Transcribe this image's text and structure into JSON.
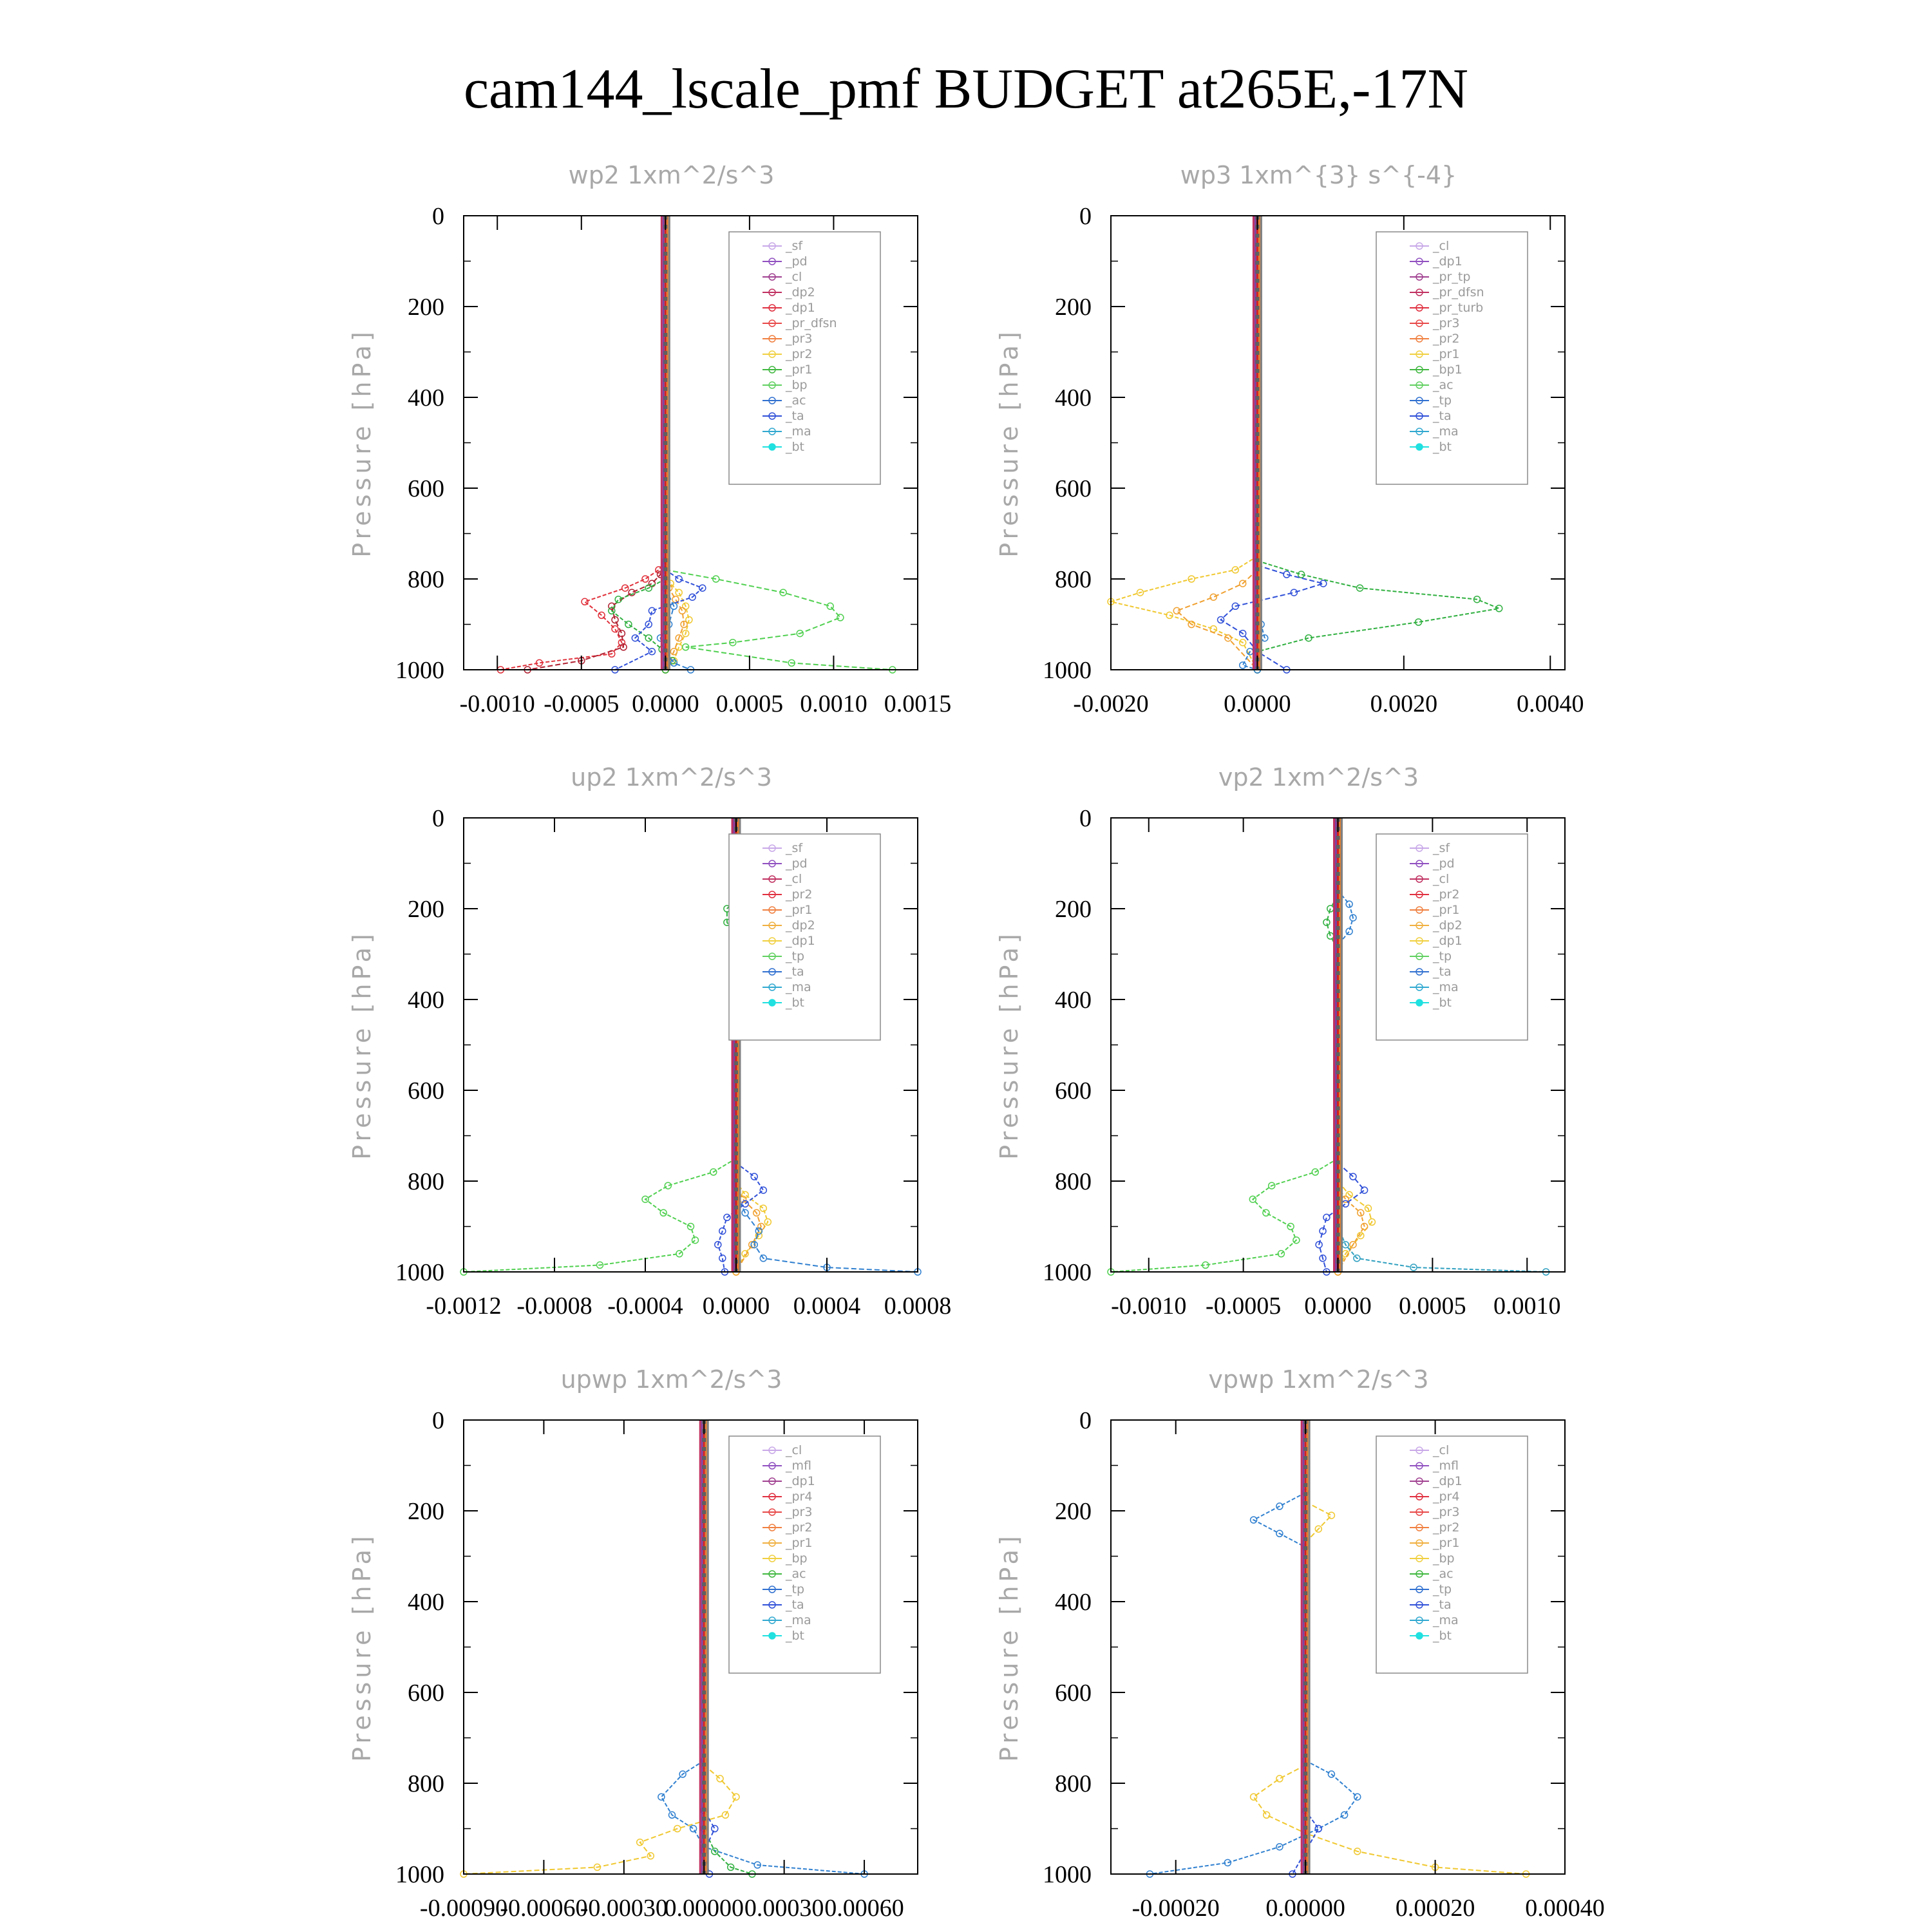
{
  "page": {
    "title": "cam144_lscale_pmf  BUDGET at265E,-17N"
  },
  "chart_data": [
    {
      "type": "line",
      "title": "wp2   1xm^2/s^3",
      "ylabel": "Pressure [hPa]",
      "ylim": [
        1000,
        0
      ],
      "xlim": [
        -0.0012,
        0.0015
      ],
      "xticks": [
        "-0.0010",
        "-0.0005",
        "0.0000",
        "0.0005",
        "0.0010",
        "0.0015"
      ],
      "xtick_values": [
        -0.001,
        -0.0005,
        0.0,
        0.0005,
        0.001,
        0.0015
      ],
      "yticks": [
        "0",
        "200",
        "400",
        "600",
        "800",
        "1000"
      ],
      "legend_position": "top-right",
      "legend": [
        "_sf",
        "_pd",
        "_cl",
        "_dp2",
        "_dp1",
        "_pr_dfsn",
        "_pr3",
        "_pr2",
        "_pr1",
        "_bp",
        "_ac",
        "_ta",
        "_ma",
        "_bt"
      ],
      "series": [
        {
          "name": "_dp1",
          "color": "#e0303a",
          "x": [
            0.0,
            -4e-05,
            -0.00012,
            -0.00024,
            -0.00048,
            -0.00038,
            -0.0003,
            -0.00026,
            -0.00032,
            -0.00075,
            -0.00098
          ],
          "y": [
            760,
            780,
            800,
            820,
            850,
            880,
            910,
            940,
            965,
            985,
            1000
          ]
        },
        {
          "name": "_dp2",
          "color": "#b02030",
          "x": [
            0.0,
            -3e-05,
            -8e-05,
            -0.0002,
            -0.00032,
            -0.0003,
            -0.00026,
            -0.00025,
            -0.0005,
            -0.00082
          ],
          "y": [
            770,
            790,
            810,
            830,
            860,
            890,
            920,
            950,
            980,
            1000
          ]
        },
        {
          "name": "_pr1",
          "color": "#f0c830",
          "x": [
            0.0,
            3e-05,
            8e-05,
            0.00012,
            0.00014,
            0.00012,
            8e-05,
            5e-05,
            0.0
          ],
          "y": [
            790,
            810,
            830,
            860,
            890,
            920,
            950,
            980,
            1000
          ]
        },
        {
          "name": "_pr2",
          "color": "#f0a030",
          "x": [
            0.0,
            2e-05,
            6e-05,
            0.0001,
            0.00011,
            8e-05,
            5e-05,
            0.0
          ],
          "y": [
            800,
            820,
            845,
            870,
            900,
            930,
            960,
            1000
          ]
        },
        {
          "name": "_bp",
          "color": "#30b040",
          "x": [
            0.0,
            -0.0001,
            -0.00028,
            -0.00032,
            -0.00022,
            -0.0001,
            -2e-05,
            4e-05,
            0.0
          ],
          "y": [
            800,
            820,
            845,
            870,
            900,
            930,
            955,
            980,
            1000
          ]
        },
        {
          "name": "_ac",
          "color": "#50d050",
          "x": [
            0.0,
            0.0003,
            0.0007,
            0.00098,
            0.00104,
            0.0008,
            0.0004,
            0.00012,
            0.00075,
            0.00135
          ],
          "y": [
            780,
            800,
            830,
            860,
            885,
            920,
            940,
            950,
            985,
            1000
          ]
        },
        {
          "name": "_ta",
          "color": "#3050d8",
          "x": [
            0.0,
            8e-05,
            0.00022,
            0.00016,
            -8e-05,
            -0.0001,
            -0.00018,
            -8e-05,
            -0.0003
          ],
          "y": [
            780,
            800,
            820,
            840,
            870,
            900,
            930,
            960,
            1000
          ]
        },
        {
          "name": "_ma",
          "color": "#3080d0",
          "x": [
            0.0,
            5e-05,
            2e-05,
            -3e-05,
            0.0,
            5e-05,
            0.00015
          ],
          "y": [
            820,
            860,
            900,
            930,
            960,
            985,
            1000
          ]
        }
      ]
    },
    {
      "type": "line",
      "title": "wp3   1xm^{3} s^{-4}",
      "ylabel": "Pressure [hPa]",
      "ylim": [
        1000,
        0
      ],
      "xlim": [
        -0.002,
        0.0042
      ],
      "xticks": [
        "-0.0020",
        "0.0000",
        "0.0020",
        "0.0040"
      ],
      "xtick_values": [
        -0.002,
        0.0,
        0.002,
        0.004
      ],
      "yticks": [
        "0",
        "200",
        "400",
        "600",
        "800",
        "1000"
      ],
      "legend_position": "top-right",
      "legend": [
        "_cl",
        "_dp1",
        "_pr_tp",
        "_pr_dfsn",
        "_pr_turb",
        "_pr3",
        "_pr2",
        "_pr1",
        "_bp1",
        "_ac",
        "_tp",
        "_ta",
        "_ma",
        "_bt"
      ],
      "series": [
        {
          "name": "_pr1",
          "color": "#f0c830",
          "x": [
            0.0,
            -0.0003,
            -0.0009,
            -0.0016,
            -0.002,
            -0.0012,
            -0.0006,
            -0.0002,
            0.0
          ],
          "y": [
            750,
            780,
            800,
            830,
            850,
            880,
            910,
            940,
            1000
          ]
        },
        {
          "name": "_pr2",
          "color": "#f0a030",
          "x": [
            0.0,
            -0.0002,
            -0.0006,
            -0.0011,
            -0.0009,
            -0.0004,
            0.0
          ],
          "y": [
            780,
            810,
            840,
            870,
            900,
            930,
            1000
          ]
        },
        {
          "name": "_bp1",
          "color": "#30b040",
          "x": [
            0.0,
            0.0006,
            0.0014,
            0.003,
            0.0033,
            0.0022,
            0.0007,
            0.0,
            0.0
          ],
          "y": [
            760,
            790,
            820,
            845,
            865,
            895,
            930,
            960,
            1000
          ]
        },
        {
          "name": "_ta",
          "color": "#3050d8",
          "x": [
            0.0,
            0.0004,
            0.0009,
            0.0005,
            -0.0003,
            -0.0005,
            -0.0002,
            0.0,
            0.0004
          ],
          "y": [
            770,
            790,
            810,
            830,
            860,
            890,
            920,
            960,
            1000
          ]
        },
        {
          "name": "_tp",
          "color": "#3080d0",
          "x": [
            0.0,
            5e-05,
            0.0001,
            -0.0001,
            -0.0002,
            0.0
          ],
          "y": [
            860,
            900,
            930,
            960,
            990,
            1000
          ]
        }
      ]
    },
    {
      "type": "line",
      "title": "up2   1xm^2/s^3",
      "ylabel": "Pressure [hPa]",
      "ylim": [
        1000,
        0
      ],
      "xlim": [
        -0.0012,
        0.0008
      ],
      "xticks": [
        "-0.0012",
        "-0.0008",
        "-0.0004",
        "0.0000",
        "0.0004",
        "0.0008"
      ],
      "xtick_values": [
        -0.0012,
        -0.0008,
        -0.0004,
        0.0,
        0.0004,
        0.0008
      ],
      "yticks": [
        "0",
        "200",
        "400",
        "600",
        "800",
        "1000"
      ],
      "legend_position": "top-right",
      "legend": [
        "_sf",
        "_pd",
        "_cl",
        "_pr2",
        "_pr1",
        "_dp2",
        "_dp1",
        "_tp",
        "_ta",
        "_ma",
        "_bt"
      ],
      "series": [
        {
          "name": "_dp1",
          "color": "#50d050",
          "x": [
            0.0,
            -0.0001,
            -0.0003,
            -0.0004,
            -0.00032,
            -0.0002,
            -0.00018,
            -0.00025,
            -0.0006,
            -0.0012
          ],
          "y": [
            750,
            780,
            810,
            840,
            870,
            900,
            930,
            960,
            985,
            1000
          ]
        },
        {
          "name": "_dp2",
          "color": "#30b040",
          "x": [
            0.0,
            -4e-05,
            -4e-05,
            0.0,
            0.0
          ],
          "y": [
            180,
            200,
            230,
            260,
            280
          ]
        },
        {
          "name": "_pr1",
          "color": "#f0c830",
          "x": [
            0.0,
            4e-05,
            0.00012,
            0.00014,
            0.0001,
            4e-05,
            0.0
          ],
          "y": [
            800,
            830,
            860,
            890,
            920,
            960,
            1000
          ]
        },
        {
          "name": "_pr2",
          "color": "#f0a030",
          "x": [
            0.0,
            3e-05,
            9e-05,
            0.00011,
            7e-05,
            0.0
          ],
          "y": [
            810,
            840,
            870,
            900,
            940,
            1000
          ]
        },
        {
          "name": "_ta",
          "color": "#3050d8",
          "x": [
            0.0,
            8e-05,
            0.00012,
            4e-05,
            -4e-05,
            -6e-05,
            -8e-05,
            -6e-05,
            -5e-05
          ],
          "y": [
            760,
            790,
            820,
            850,
            880,
            910,
            940,
            970,
            1000
          ]
        },
        {
          "name": "_tp",
          "color": "#3080d0",
          "x": [
            0.0,
            4e-05,
            0.0001,
            8e-05,
            0.00012,
            0.0004,
            0.0008
          ],
          "y": [
            830,
            870,
            910,
            940,
            970,
            990,
            1000
          ]
        }
      ]
    },
    {
      "type": "line",
      "title": "vp2   1xm^2/s^3",
      "ylabel": "Pressure [hPa]",
      "ylim": [
        1000,
        0
      ],
      "xlim": [
        -0.0012,
        0.0012
      ],
      "xticks": [
        "-0.0010",
        "-0.0005",
        "0.0000",
        "0.0005",
        "0.0010"
      ],
      "xtick_values": [
        -0.001,
        -0.0005,
        0.0,
        0.0005,
        0.001
      ],
      "yticks": [
        "0",
        "200",
        "400",
        "600",
        "800",
        "1000"
      ],
      "legend_position": "top-right",
      "legend": [
        "_sf",
        "_pd",
        "_cl",
        "_pr2",
        "_pr1",
        "_dp2",
        "_dp1",
        "_tp",
        "_ta",
        "_ma",
        "_bt"
      ],
      "series": [
        {
          "name": "_dp1",
          "color": "#50d050",
          "x": [
            0.0,
            -0.00012,
            -0.00035,
            -0.00045,
            -0.00038,
            -0.00025,
            -0.00022,
            -0.0003,
            -0.0007,
            -0.0012
          ],
          "y": [
            750,
            780,
            810,
            840,
            870,
            900,
            930,
            960,
            985,
            1000
          ]
        },
        {
          "name": "_dp2",
          "color": "#30b040",
          "x": [
            0.0,
            -4e-05,
            -6e-05,
            -4e-05,
            0.0
          ],
          "y": [
            170,
            200,
            230,
            260,
            290
          ]
        },
        {
          "name": "_tp",
          "color": "#3080d0",
          "x": [
            0.0,
            6e-05,
            8e-05,
            6e-05,
            0.0
          ],
          "y": [
            160,
            190,
            220,
            250,
            280
          ]
        },
        {
          "name": "_pr1",
          "color": "#f0c830",
          "x": [
            0.0,
            6e-05,
            0.00016,
            0.00018,
            0.00012,
            4e-05,
            0.0
          ],
          "y": [
            800,
            830,
            860,
            890,
            920,
            960,
            1000
          ]
        },
        {
          "name": "_pr2",
          "color": "#f0a030",
          "x": [
            0.0,
            4e-05,
            0.00012,
            0.00014,
            8e-05,
            0.0
          ],
          "y": [
            810,
            840,
            870,
            900,
            940,
            1000
          ]
        },
        {
          "name": "_ta",
          "color": "#3050d8",
          "x": [
            0.0,
            8e-05,
            0.00014,
            4e-05,
            -6e-05,
            -8e-05,
            -0.0001,
            -8e-05,
            -6e-05
          ],
          "y": [
            760,
            790,
            820,
            850,
            880,
            910,
            940,
            970,
            1000
          ]
        },
        {
          "name": "_ma",
          "color": "#30a0c0",
          "x": [
            0.0,
            4e-05,
            0.0001,
            0.0004,
            0.0011
          ],
          "y": [
            900,
            940,
            970,
            990,
            1000
          ]
        }
      ]
    },
    {
      "type": "line",
      "title": "upwp   1xm^2/s^3",
      "ylabel": "Pressure [hPa]",
      "ylim": [
        1000,
        0
      ],
      "xlim": [
        -0.0009,
        0.0008
      ],
      "xticks": [
        "-0.00090",
        "-0.00060",
        "-0.00030",
        "0.00000",
        "0.00030",
        "0.00060"
      ],
      "xtick_values": [
        -0.0009,
        -0.0006,
        -0.0003,
        0.0,
        0.0003,
        0.0006
      ],
      "yticks": [
        "0",
        "200",
        "400",
        "600",
        "800",
        "1000"
      ],
      "legend_position": "top-right",
      "legend": [
        "_cl",
        "_mfl",
        "_dp1",
        "_pr4",
        "_pr3",
        "_pr2",
        "_pr1",
        "_bp",
        "_ac",
        "_tp",
        "_ta",
        "_ma",
        "_bt"
      ],
      "series": [
        {
          "name": "_tp",
          "color": "#3080d0",
          "x": [
            0.0,
            -8e-05,
            -0.00016,
            -0.00012,
            -4e-05,
            0.0,
            0.0002,
            0.0006
          ],
          "y": [
            750,
            780,
            830,
            870,
            900,
            940,
            980,
            1000
          ]
        },
        {
          "name": "_pr1",
          "color": "#f0c830",
          "x": [
            0.0,
            6e-05,
            0.00012,
            8e-05,
            -0.0001,
            -0.00024,
            -0.0002,
            -0.0004,
            -0.0009
          ],
          "y": [
            760,
            790,
            830,
            870,
            900,
            930,
            960,
            985,
            1000
          ]
        },
        {
          "name": "_bp",
          "color": "#30b040",
          "x": [
            0.0,
            4e-05,
            0.0001,
            0.00018
          ],
          "y": [
            900,
            950,
            985,
            1000
          ]
        },
        {
          "name": "_ta",
          "color": "#3050d8",
          "x": [
            0.0,
            4e-05,
            0.0,
            2e-05
          ],
          "y": [
            860,
            900,
            950,
            1000
          ]
        }
      ]
    },
    {
      "type": "line",
      "title": "vpwp   1xm^2/s^3",
      "ylabel": "Pressure [hPa]",
      "ylim": [
        1000,
        0
      ],
      "xlim": [
        -0.0003,
        0.0004
      ],
      "xticks": [
        "-0.00020",
        "0.00000",
        "0.00020",
        "0.00040"
      ],
      "xtick_values": [
        -0.0002,
        0.0,
        0.0002,
        0.0004
      ],
      "yticks": [
        "0",
        "200",
        "400",
        "600",
        "800",
        "1000"
      ],
      "legend_position": "top-right",
      "legend": [
        "_cl",
        "_mfl",
        "_dp1",
        "_pr4",
        "_pr3",
        "_pr2",
        "_pr1",
        "_bp",
        "_ac",
        "_tp",
        "_ta",
        "_ma",
        "_bt"
      ],
      "series": [
        {
          "name": "_tp",
          "color": "#3080d0",
          "x": [
            0.0,
            -4e-05,
            -8e-05,
            -4e-05,
            0.0
          ],
          "y": [
            160,
            190,
            220,
            250,
            280
          ]
        },
        {
          "name": "_pr1",
          "color": "#f0c830",
          "x": [
            0.0,
            4e-05,
            2e-05,
            0.0
          ],
          "y": [
            180,
            210,
            240,
            270
          ]
        },
        {
          "name": "_tp",
          "color": "#3080d0",
          "x": [
            0.0,
            4e-05,
            8e-05,
            6e-05,
            2e-05,
            -4e-05,
            -0.00012,
            -0.00024
          ],
          "y": [
            750,
            780,
            830,
            870,
            900,
            940,
            975,
            1000
          ]
        },
        {
          "name": "_pr1",
          "color": "#f0c830",
          "x": [
            0.0,
            -4e-05,
            -8e-05,
            -6e-05,
            0.0,
            8e-05,
            0.0002,
            0.00034
          ],
          "y": [
            760,
            790,
            830,
            870,
            910,
            950,
            985,
            1000
          ]
        },
        {
          "name": "_ta",
          "color": "#3050d8",
          "x": [
            0.0,
            2e-05,
            0.0,
            -2e-05
          ],
          "y": [
            860,
            900,
            950,
            1000
          ]
        }
      ]
    }
  ]
}
